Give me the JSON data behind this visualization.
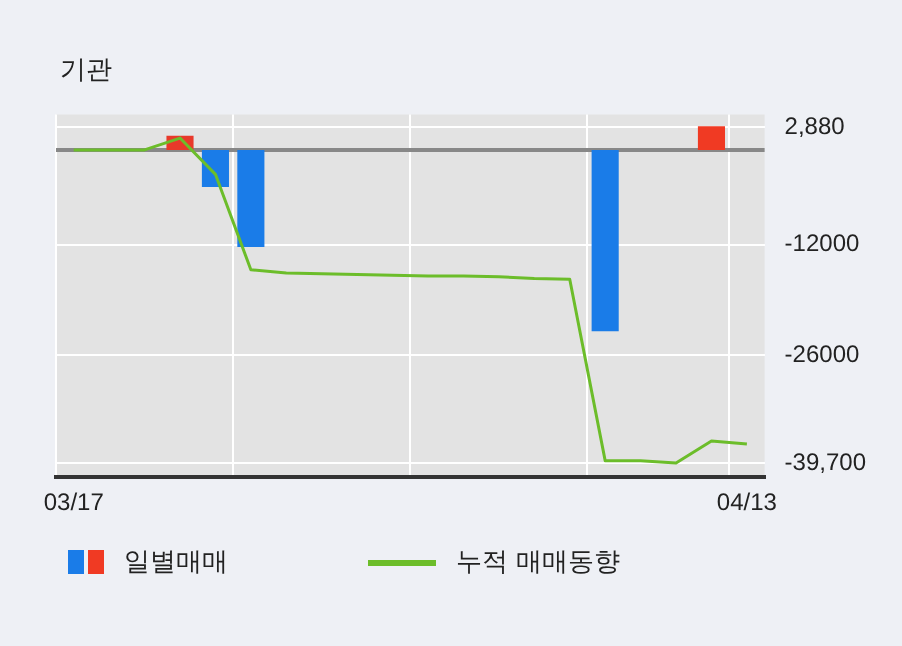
{
  "chart_data": {
    "type": "bar",
    "title": "기관",
    "categories": [
      "03/17",
      null,
      null,
      null,
      null,
      null,
      null,
      null,
      null,
      null,
      null,
      null,
      null,
      null,
      null,
      null,
      null,
      null,
      null,
      "04/13"
    ],
    "series": [
      {
        "name": "일별매매",
        "color": "#1a7ce8",
        "values": [
          0,
          null,
          0,
          1800,
          -4700,
          -12300,
          0,
          0,
          0,
          0,
          0,
          0,
          0,
          0,
          0,
          -23000,
          0,
          0,
          3000,
          0
        ],
        "colors": [
          "#1a7ce8",
          "#c0602a",
          "#1a7ce8",
          "#e8392a",
          "#1a7ce8",
          "#1a7ce8",
          "#1a7ce8",
          "#1a7ce8",
          "#1a7ce8",
          "#1a7ce8",
          "#1a7ce8",
          "#1a7ce8",
          "#1a7ce8",
          "#1a7ce8",
          "#1a7ce8",
          "#1a7ce8",
          "#1a7ce8",
          "#1a7ce8",
          "#f03a23",
          "#1a7ce8"
        ]
      },
      {
        "name": "누적 매매동향",
        "type": "line",
        "color": "#6cbd2a",
        "values": [
          0,
          0,
          0,
          1500,
          -3100,
          -15200,
          -15600,
          -15700,
          -15800,
          -15900,
          -16000,
          -16000,
          -16100,
          -16300,
          -16400,
          -39400,
          -39400,
          -39700,
          -36900,
          -37300
        ]
      }
    ],
    "ylim": [
      -41500,
      4500
    ],
    "yticks": [
      {
        "value": 2880,
        "label": "2,880"
      },
      -12000,
      -26000,
      {
        "value": -39700,
        "label": "-39,700"
      }
    ],
    "ref_lines": [
      {
        "axis": "y",
        "value": 0,
        "color": "#888888"
      }
    ],
    "grid": true,
    "legend": "bottom",
    "marker": "none",
    "line_style": "solid"
  }
}
